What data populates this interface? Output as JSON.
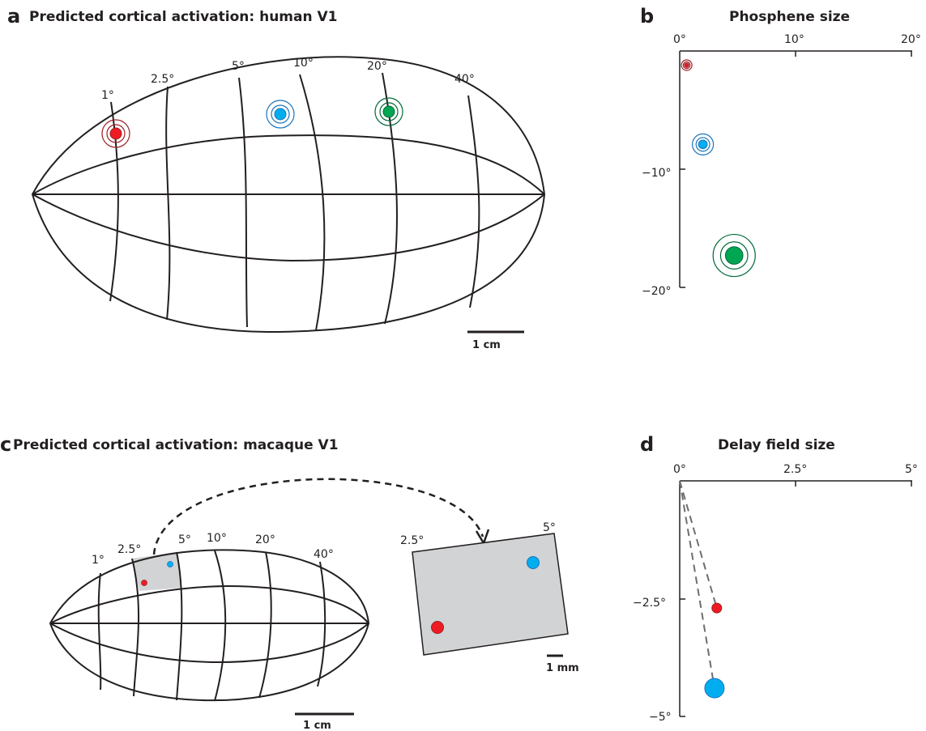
{
  "panels": {
    "a": {
      "letter": "a",
      "title": "Predicted cortical activation: human V1",
      "ecc_labels": [
        "1°",
        "2.5°",
        "5°",
        "10°",
        "20°",
        "40°"
      ],
      "scale_label": "1 cm"
    },
    "b": {
      "letter": "b",
      "title": "Phosphene size",
      "x_ticks": [
        "0°",
        "10°",
        "20°"
      ],
      "y_ticks": [
        "−10°",
        "−20°"
      ]
    },
    "c": {
      "letter": "c",
      "title": "Predicted cortical activation: macaque V1",
      "ecc_labels": [
        "1°",
        "2.5°",
        "5°",
        "10°",
        "20°",
        "40°"
      ],
      "scale_label": "1 cm",
      "inset_labels": [
        "2.5°",
        "5°"
      ],
      "inset_scale_label": "1 mm"
    },
    "d": {
      "letter": "d",
      "title": "Delay field size",
      "x_ticks": [
        "0°",
        "2.5°",
        "5°"
      ],
      "y_ticks": [
        "−2.5°",
        "−5°"
      ]
    }
  },
  "colors": {
    "red": "#ed1c24",
    "red_ring": "#9e1f24",
    "blue": "#00aeef",
    "blue_ring": "#1b75bc",
    "green": "#00a651",
    "green_ring": "#006837",
    "line": "#231f20",
    "gray_fill": "#d1d3d4",
    "dash": "#6d6e71"
  },
  "chart_data": [
    {
      "panel": "b",
      "type": "scatter",
      "title": "Phosphene size",
      "xlim": [
        0,
        20
      ],
      "ylim": [
        -20,
        0
      ],
      "points": [
        {
          "color": "red",
          "x": 0.6,
          "y": -1.2
        },
        {
          "color": "blue",
          "x": 2.0,
          "y": -7.9
        },
        {
          "color": "green",
          "x": 4.7,
          "y": -17.3
        }
      ]
    },
    {
      "panel": "d",
      "type": "scatter",
      "title": "Delay field size",
      "xlim": [
        0,
        5
      ],
      "ylim": [
        -5,
        0
      ],
      "points": [
        {
          "color": "red",
          "x": 0.8,
          "y": -2.7
        },
        {
          "color": "blue",
          "x": 0.75,
          "y": -4.4
        }
      ]
    }
  ]
}
